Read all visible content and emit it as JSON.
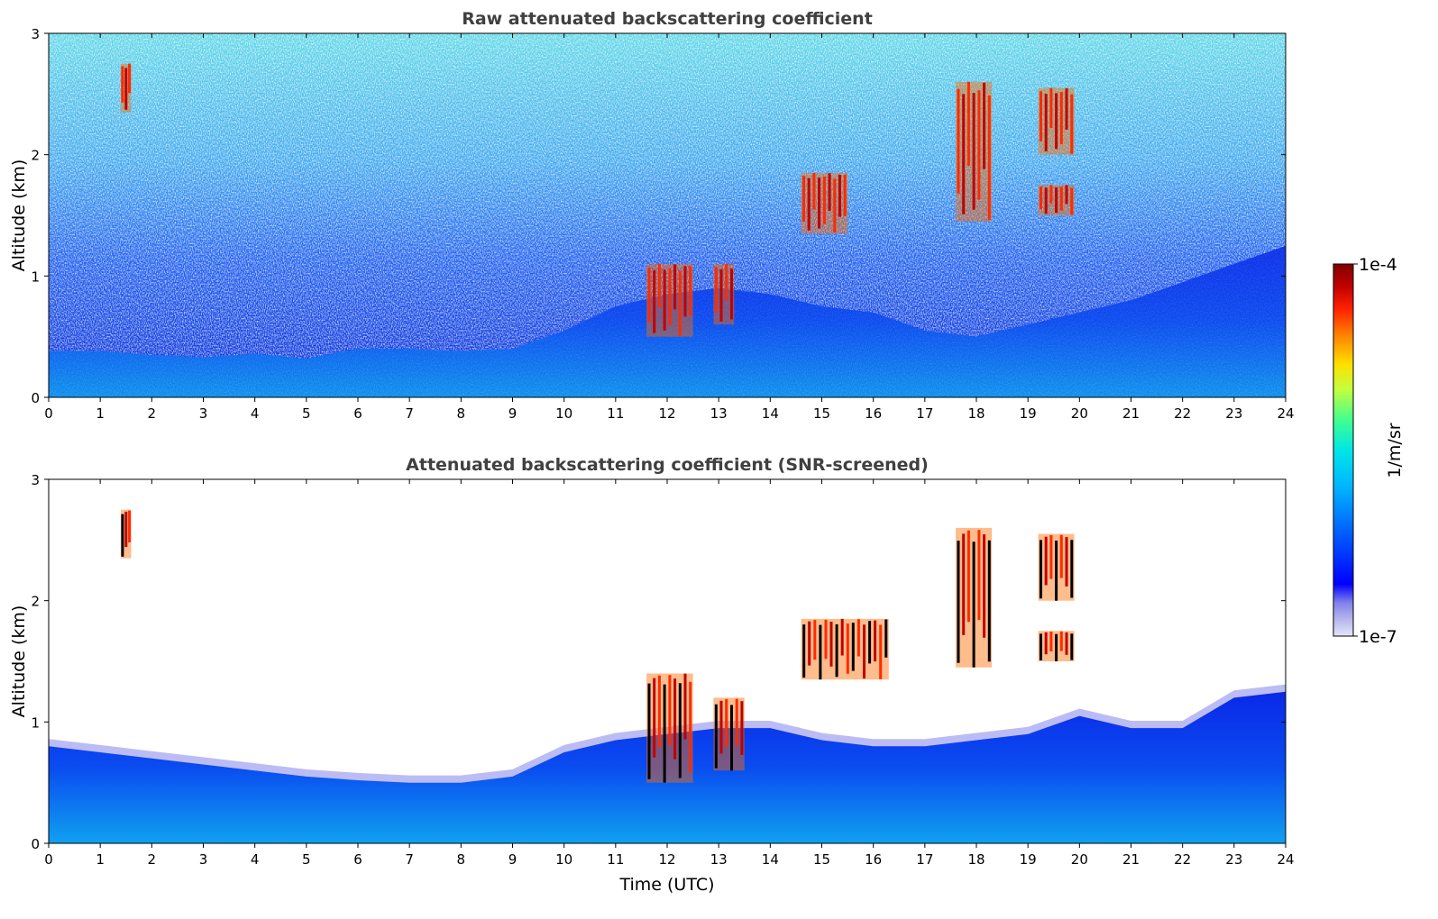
{
  "chart_data": [
    {
      "type": "heatmap",
      "title": "Raw attenuated backscattering coefficient",
      "xlabel": "",
      "ylabel": "Altitude (km)",
      "xlim": [
        0,
        24
      ],
      "ylim": [
        0,
        3
      ],
      "x_ticks": [
        "0",
        "1",
        "2",
        "3",
        "4",
        "5",
        "6",
        "7",
        "8",
        "9",
        "10",
        "11",
        "12",
        "13",
        "14",
        "15",
        "16",
        "17",
        "18",
        "19",
        "20",
        "21",
        "22",
        "23",
        "24"
      ],
      "y_ticks": [
        "0",
        "1",
        "2",
        "3"
      ],
      "boundary_layer_top_km": [
        [
          0,
          0.38
        ],
        [
          1,
          0.38
        ],
        [
          2,
          0.35
        ],
        [
          3,
          0.33
        ],
        [
          4,
          0.36
        ],
        [
          5,
          0.32
        ],
        [
          6,
          0.4
        ],
        [
          7,
          0.4
        ],
        [
          8,
          0.38
        ],
        [
          9,
          0.4
        ],
        [
          10,
          0.55
        ],
        [
          11,
          0.75
        ],
        [
          12,
          0.85
        ],
        [
          13,
          0.9
        ],
        [
          14,
          0.85
        ],
        [
          15,
          0.75
        ],
        [
          16,
          0.7
        ],
        [
          17,
          0.55
        ],
        [
          18,
          0.5
        ],
        [
          19,
          0.6
        ],
        [
          20,
          0.7
        ],
        [
          21,
          0.8
        ],
        [
          22,
          0.95
        ],
        [
          23,
          1.1
        ],
        [
          24,
          1.25
        ]
      ],
      "cloud_features": [
        {
          "t_start": 1.4,
          "t_end": 1.6,
          "z_bottom_km": 2.35,
          "z_top_km": 2.75
        },
        {
          "t_start": 11.6,
          "t_end": 12.5,
          "z_bottom_km": 0.5,
          "z_top_km": 1.1
        },
        {
          "t_start": 12.9,
          "t_end": 13.3,
          "z_bottom_km": 0.6,
          "z_top_km": 1.1
        },
        {
          "t_start": 14.6,
          "t_end": 15.5,
          "z_bottom_km": 1.35,
          "z_top_km": 1.85
        },
        {
          "t_start": 17.6,
          "t_end": 18.3,
          "z_bottom_km": 1.45,
          "z_top_km": 2.6
        },
        {
          "t_start": 19.2,
          "t_end": 19.9,
          "z_bottom_km": 1.5,
          "z_top_km": 1.75
        },
        {
          "t_start": 19.2,
          "t_end": 19.9,
          "z_bottom_km": 2.0,
          "z_top_km": 2.55
        }
      ]
    },
    {
      "type": "heatmap",
      "title": "Attenuated backscattering coefficient (SNR-screened)",
      "xlabel": "Time (UTC)",
      "ylabel": "Altitude (km)",
      "xlim": [
        0,
        24
      ],
      "ylim": [
        0,
        3
      ],
      "x_ticks": [
        "0",
        "1",
        "2",
        "3",
        "4",
        "5",
        "6",
        "7",
        "8",
        "9",
        "10",
        "11",
        "12",
        "13",
        "14",
        "15",
        "16",
        "17",
        "18",
        "19",
        "20",
        "21",
        "22",
        "23",
        "24"
      ],
      "y_ticks": [
        "0",
        "1",
        "2",
        "3"
      ],
      "boundary_layer_top_km": [
        [
          0,
          0.8
        ],
        [
          1,
          0.75
        ],
        [
          2,
          0.7
        ],
        [
          3,
          0.65
        ],
        [
          4,
          0.6
        ],
        [
          5,
          0.55
        ],
        [
          6,
          0.52
        ],
        [
          7,
          0.5
        ],
        [
          8,
          0.5
        ],
        [
          9,
          0.55
        ],
        [
          10,
          0.75
        ],
        [
          11,
          0.85
        ],
        [
          12,
          0.9
        ],
        [
          13,
          0.95
        ],
        [
          14,
          0.95
        ],
        [
          15,
          0.85
        ],
        [
          16,
          0.8
        ],
        [
          17,
          0.8
        ],
        [
          18,
          0.85
        ],
        [
          19,
          0.9
        ],
        [
          20,
          1.05
        ],
        [
          21,
          0.95
        ],
        [
          22,
          0.95
        ],
        [
          23,
          1.2
        ],
        [
          24,
          1.25
        ]
      ],
      "cloud_features": [
        {
          "t_start": 1.4,
          "t_end": 1.6,
          "z_bottom_km": 2.35,
          "z_top_km": 2.75
        },
        {
          "t_start": 11.6,
          "t_end": 12.5,
          "z_bottom_km": 0.5,
          "z_top_km": 1.4
        },
        {
          "t_start": 12.9,
          "t_end": 13.5,
          "z_bottom_km": 0.6,
          "z_top_km": 1.2
        },
        {
          "t_start": 14.6,
          "t_end": 16.3,
          "z_bottom_km": 1.35,
          "z_top_km": 1.85
        },
        {
          "t_start": 17.6,
          "t_end": 18.3,
          "z_bottom_km": 1.45,
          "z_top_km": 2.6
        },
        {
          "t_start": 19.2,
          "t_end": 19.9,
          "z_bottom_km": 1.5,
          "z_top_km": 1.75
        },
        {
          "t_start": 19.2,
          "t_end": 19.9,
          "z_bottom_km": 2.0,
          "z_top_km": 2.55
        }
      ]
    }
  ],
  "colorbar": {
    "label": "1/m/sr",
    "max_label": "1e-4",
    "min_label": "1e-7",
    "scale": "log",
    "colormap": [
      "#e6e6fa",
      "#b0b0ec",
      "#8080ec",
      "#0000ff",
      "#0060ff",
      "#00b4ff",
      "#00e6e6",
      "#40ff90",
      "#c0ff40",
      "#ffe000",
      "#ff8000",
      "#ff2000",
      "#c00000",
      "#800000"
    ]
  }
}
